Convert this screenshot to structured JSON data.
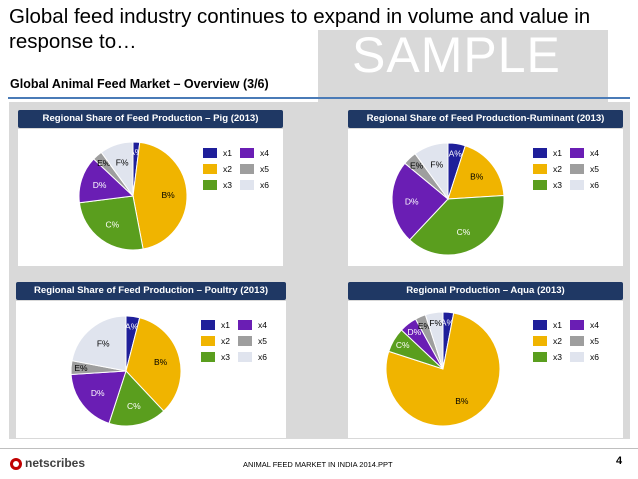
{
  "header": {
    "title": "Global feed industry continues to expand in volume and value in response to…",
    "watermark": "SAMPLE",
    "subtitle": "Global Animal Feed Market – Overview (3/6)"
  },
  "colors": {
    "x1": "#1f1f9a",
    "x2": "#f0b400",
    "x3": "#5a9e1e",
    "x4": "#6a1eb4",
    "x5": "#9e9e9e",
    "x6": "#e0e4ee",
    "header_bg": "#1f3864",
    "rule": "#4a7bb7"
  },
  "legend": [
    "x1",
    "x2",
    "x3",
    "x4",
    "x5",
    "x6"
  ],
  "chart_data": [
    {
      "type": "pie",
      "title": "Regional Share of Feed Production – Pig (2013)",
      "labels": [
        "A%",
        "B%",
        "C%",
        "D%",
        "E%",
        "F%"
      ],
      "series_names": [
        "x1",
        "x2",
        "x3",
        "x4",
        "x5",
        "x6"
      ],
      "values": [
        2,
        45,
        26,
        14,
        3,
        10
      ]
    },
    {
      "type": "pie",
      "title": "Regional Share of Feed Production-Ruminant (2013)",
      "labels": [
        "A%",
        "B%",
        "C%",
        "D%",
        "E%",
        "F%"
      ],
      "series_names": [
        "x1",
        "x2",
        "x3",
        "x4",
        "x5",
        "x6"
      ],
      "values": [
        5,
        19,
        38,
        24,
        4,
        10
      ]
    },
    {
      "type": "pie",
      "title": "Regional Share of Feed Production – Poultry (2013)",
      "labels": [
        "A%",
        "B%",
        "C%",
        "D%",
        "E%",
        "F%"
      ],
      "series_names": [
        "x1",
        "x2",
        "x3",
        "x4",
        "x5",
        "x6"
      ],
      "values": [
        4,
        34,
        17,
        19,
        4,
        22
      ]
    },
    {
      "type": "pie",
      "title": "Regional Production – Aqua (2013)",
      "labels": [
        "A%",
        "B%",
        "C%",
        "D%",
        "E%",
        "F%"
      ],
      "series_names": [
        "x1",
        "x2",
        "x3",
        "x4",
        "x5",
        "x6"
      ],
      "values": [
        3,
        77,
        7,
        5,
        3,
        5
      ]
    }
  ],
  "footer": {
    "logo": "netscribes",
    "text": "ANIMAL FEED MARKET IN INDIA 2014.PPT",
    "page": "4"
  }
}
